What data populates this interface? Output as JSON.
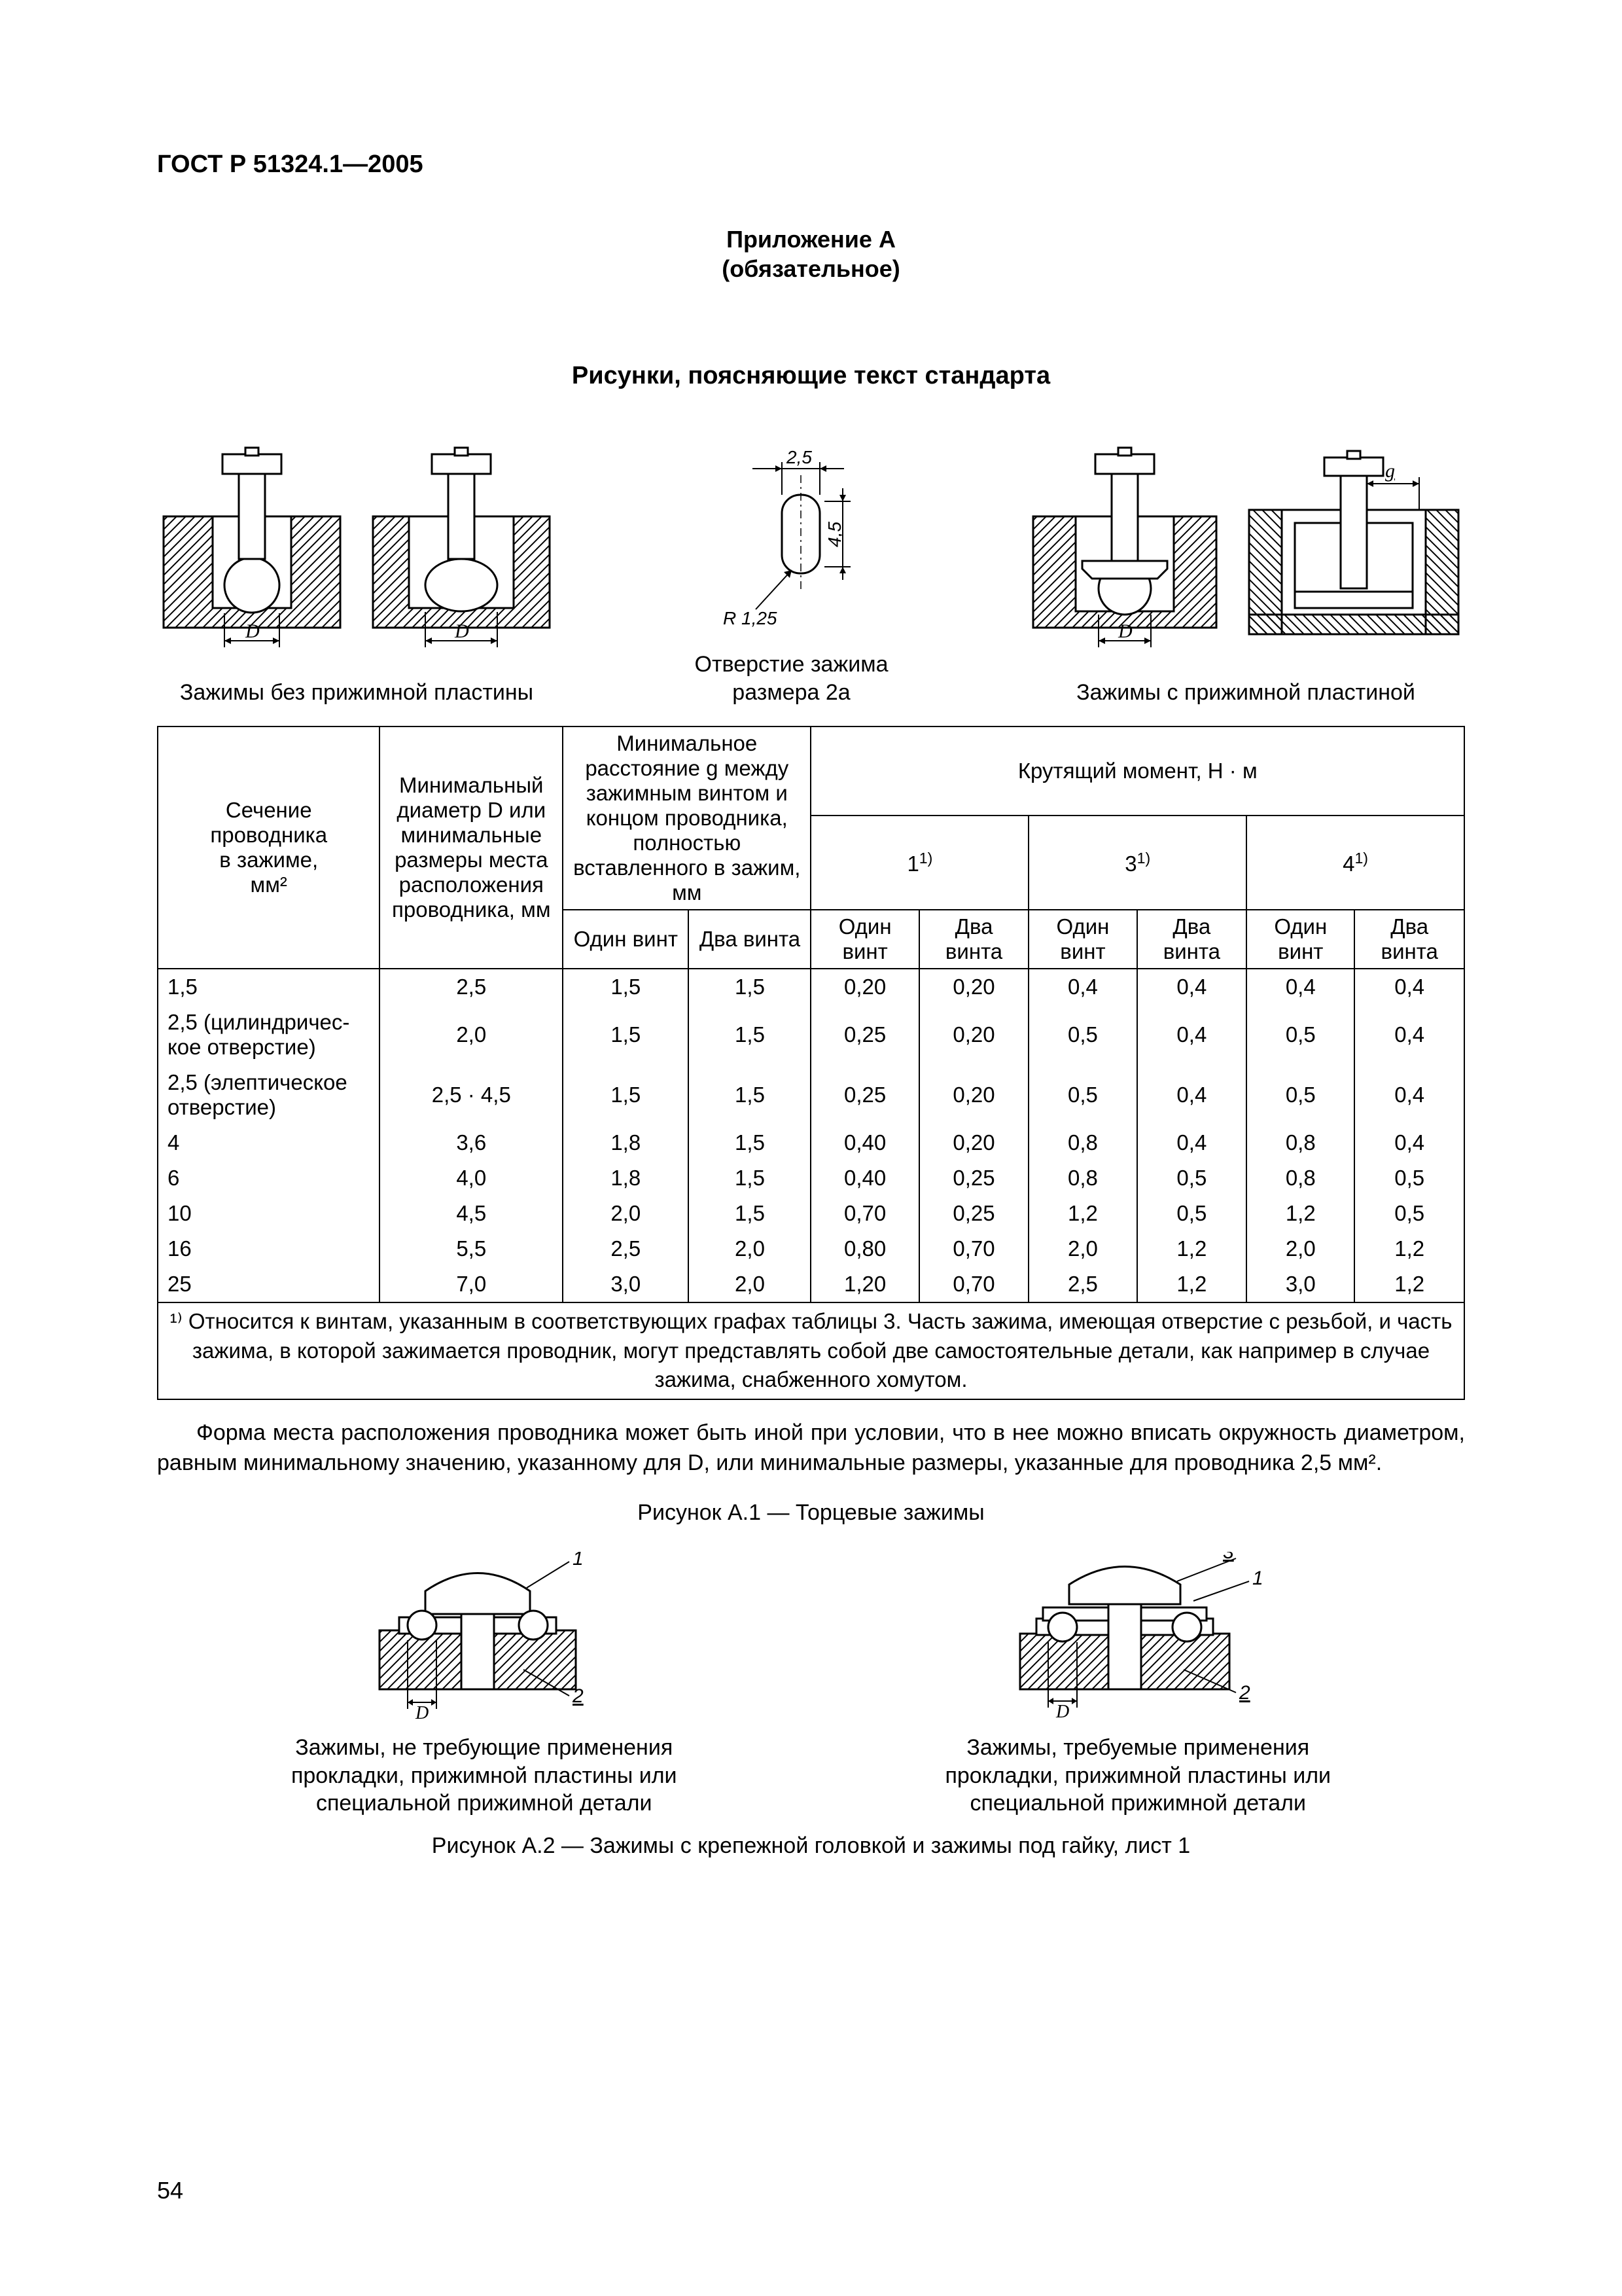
{
  "header": "ГОСТ Р 51324.1—2005",
  "appendix_line1": "Приложение А",
  "appendix_line2": "(обязательное)",
  "section_title": "Рисунки, поясняющие текст стандарта",
  "fig_caption_1": "Зажимы без прижимной пластины",
  "fig_caption_2a": "Отверстие зажима",
  "fig_caption_2b": "размера 2а",
  "fig_caption_3": "Зажимы с прижимной пластиной",
  "dim_2_5": "2,5",
  "dim_4_5": "4,5",
  "dim_r": "R 1,25",
  "dim_D": "D",
  "dim_g": "g",
  "table": {
    "h_section_a": "Сечение",
    "h_section_b": "проводника",
    "h_section_c": "в зажиме,",
    "h_section_d": "мм²",
    "h_diam": "Минимальный ди­аметр D или ми­нимальные раз­меры места рас­положения про­водника, мм",
    "h_dist_a": "Минимальное расстояние g между зажимным винтом и концом проводника, пол­ностью вставленного в за­жим, мм",
    "h_torque": "Крутящий момент, Н · м",
    "h_t1": "1",
    "h_t3": "3",
    "h_t4": "4",
    "h_sup": "1)",
    "h_one": "Один винт",
    "h_two": "Два винта",
    "rows": [
      {
        "s": "1,5",
        "d": "2,5",
        "g1": "1,5",
        "g2": "1,5",
        "t1a": "0,20",
        "t1b": "0,20",
        "t3a": "0,4",
        "t3b": "0,4",
        "t4a": "0,4",
        "t4b": "0,4"
      },
      {
        "s": "2,5 (цилиндричес­кое отверстие)",
        "d": "2,0",
        "g1": "1,5",
        "g2": "1,5",
        "t1a": "0,25",
        "t1b": "0,20",
        "t3a": "0,5",
        "t3b": "0,4",
        "t4a": "0,5",
        "t4b": "0,4"
      },
      {
        "s": "2,5 (элептическое отверстие)",
        "d": "2,5 · 4,5",
        "g1": "1,5",
        "g2": "1,5",
        "t1a": "0,25",
        "t1b": "0,20",
        "t3a": "0,5",
        "t3b": "0,4",
        "t4a": "0,5",
        "t4b": "0,4"
      },
      {
        "s": "4",
        "d": "3,6",
        "g1": "1,8",
        "g2": "1,5",
        "t1a": "0,40",
        "t1b": "0,20",
        "t3a": "0,8",
        "t3b": "0,4",
        "t4a": "0,8",
        "t4b": "0,4"
      },
      {
        "s": "6",
        "d": "4,0",
        "g1": "1,8",
        "g2": "1,5",
        "t1a": "0,40",
        "t1b": "0,25",
        "t3a": "0,8",
        "t3b": "0,5",
        "t4a": "0,8",
        "t4b": "0,5"
      },
      {
        "s": "10",
        "d": "4,5",
        "g1": "2,0",
        "g2": "1,5",
        "t1a": "0,70",
        "t1b": "0,25",
        "t3a": "1,2",
        "t3b": "0,5",
        "t4a": "1,2",
        "t4b": "0,5"
      },
      {
        "s": "16",
        "d": "5,5",
        "g1": "2,5",
        "g2": "2,0",
        "t1a": "0,80",
        "t1b": "0,70",
        "t3a": "2,0",
        "t3b": "1,2",
        "t4a": "2,0",
        "t4b": "1,2"
      },
      {
        "s": "25",
        "d": "7,0",
        "g1": "3,0",
        "g2": "2,0",
        "t1a": "1,20",
        "t1b": "0,70",
        "t3a": "2,5",
        "t3b": "1,2",
        "t4a": "3,0",
        "t4b": "1,2"
      }
    ],
    "footnote": "¹⁾ Относится  к винтам, указанным в соответствующих графах таблицы 3. Часть зажима, имеющая отверстие с резьбой, и часть зажима, в которой зажимается проводник, могут представлять собой две само­стоятельные детали, как например в случае зажима, снабженного хомутом."
  },
  "body_para": "Форма места расположения проводника может быть иной при условии, что в нее можно вписать окруж­ность диаметром, равным минимальному значению, указанному  для  D,  или минимальные размеры, указанные для проводника 2,5 мм².",
  "figA1_title": "Рисунок А.1 — Торцевые зажимы",
  "bcap1a": "Зажимы, не требующие применения",
  "bcap1b": "прокладки, прижимной пластины или",
  "bcap1c": "специальной прижимной детали",
  "bcap2a": "Зажимы, требуемые применения",
  "bcap2b": "прокладки, прижимной пластины или",
  "bcap2c": "специальной прижимной детали",
  "figA2_title": "Рисунок А.2 — Зажимы с крепежной головкой и зажимы под гайку, лист 1",
  "pagenum": "54",
  "label_1": "1",
  "label_2": "2",
  "label_3": "3"
}
